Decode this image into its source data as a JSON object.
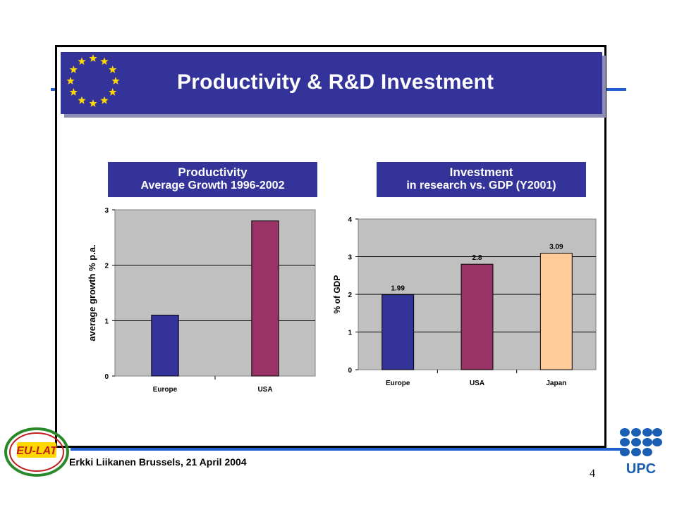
{
  "slide": {
    "title": "Productivity & R&D Investment",
    "footer": "Erkki Liikanen Brussels, 21 April 2004",
    "page_number": "4",
    "logo_left_text": "EU-LAT",
    "logo_right_text": "UPC"
  },
  "colors": {
    "banner": "#333399",
    "rule": "#1f5fd1",
    "plot_bg": "#c0c0c0",
    "bar_europe": "#333399",
    "bar_usa": "#993366",
    "bar_japan": "#ffcc99",
    "upc_blue": "#1a5fb4",
    "star_yellow": "#ffd700"
  },
  "chart_data": [
    {
      "type": "bar",
      "header_line1": "Productivity",
      "header_line2": "Average Growth 1996-2002",
      "categories": [
        "Europe",
        "USA"
      ],
      "values": [
        1.1,
        2.8
      ],
      "ylabel": "average growth % p.a.",
      "ylim": [
        0,
        3
      ],
      "yticks": [
        "0",
        "1",
        "2",
        "3"
      ],
      "grid": true
    },
    {
      "type": "bar",
      "header_line1": "Investment",
      "header_line2": "in research vs. GDP (Y2001)",
      "categories": [
        "Europe",
        "USA",
        "Japan"
      ],
      "values": [
        1.99,
        2.8,
        3.09
      ],
      "data_labels": [
        "1.99",
        "2.8",
        "3.09"
      ],
      "ylabel": "% of GDP",
      "ylim": [
        0,
        4
      ],
      "yticks": [
        "0",
        "1",
        "2",
        "3",
        "4"
      ],
      "grid": true
    }
  ]
}
